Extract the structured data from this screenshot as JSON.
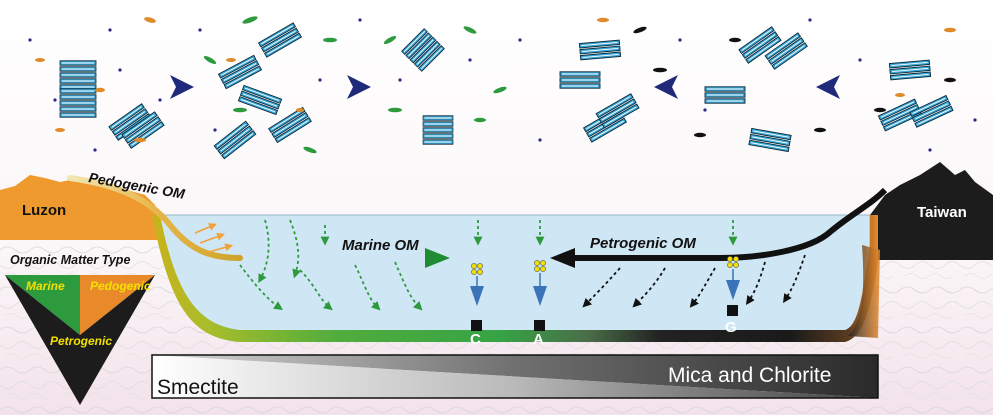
{
  "labels": {
    "luzon": "Luzon",
    "taiwan": "Taiwan",
    "pedogenic_om": "Pedogenic OM",
    "marine_om": "Marine OM",
    "petrogenic_om": "Petrogenic OM",
    "om_type_title": "Organic Matter Type",
    "marine": "Marine",
    "pedogenic": "Pedogenic",
    "petrogenic": "Petrogenic",
    "site_c": "C",
    "site_a": "A",
    "site_g": "G",
    "smectite": "Smectite",
    "mica_chlorite": "Mica and Chlorite"
  },
  "colors": {
    "marine": "#2e9a3e",
    "pedogenic": "#e8892a",
    "petrogenic": "#1c1c1c",
    "water": "#cfe6f5",
    "clay_blue": "#3aa7d6",
    "arrow_navy": "#1f2a7a",
    "yellow_text": "#f2e100"
  }
}
